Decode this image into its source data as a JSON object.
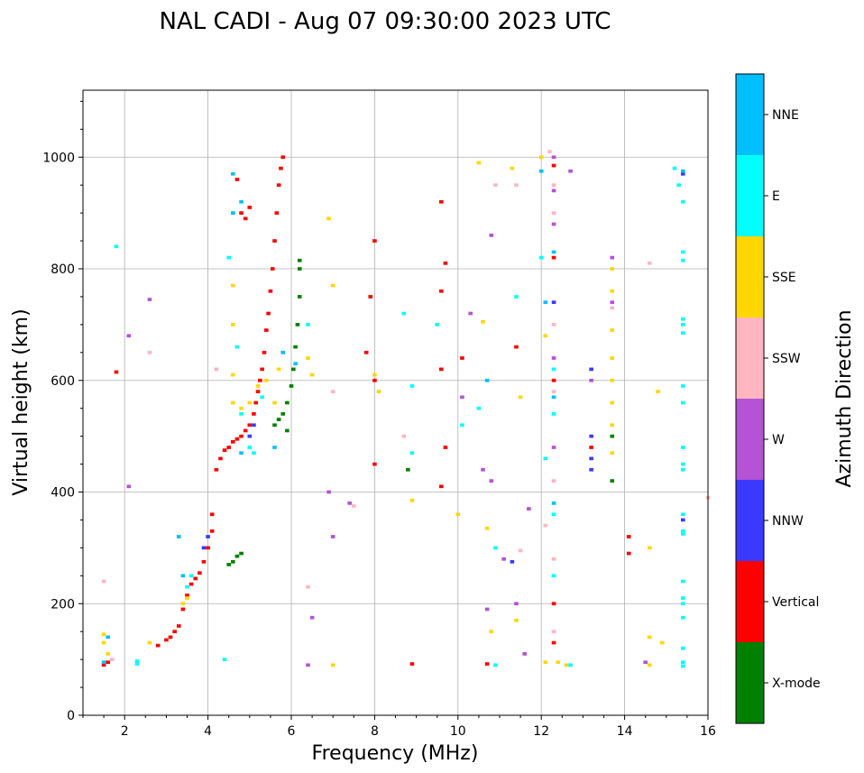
{
  "chart_data": {
    "type": "scatter",
    "title": "NAL CADI - Aug 07 09:30:00 2023 UTC",
    "xlabel": "Frequency (MHz)",
    "ylabel": "Virtual height (km)",
    "xlim": [
      1,
      16
    ],
    "ylim": [
      0,
      1120
    ],
    "xticks": [
      2,
      4,
      6,
      8,
      10,
      12,
      14,
      16
    ],
    "yticks": [
      0,
      200,
      400,
      600,
      800,
      1000
    ],
    "grid": true,
    "colorbar": {
      "label": "Azimuth Direction",
      "placement": "right",
      "categories": [
        {
          "name": "X-mode",
          "color": "#008000"
        },
        {
          "name": "Vertical",
          "color": "#ff0000"
        },
        {
          "name": "NNW",
          "color": "#3a3aff"
        },
        {
          "name": "W",
          "color": "#b453d6"
        },
        {
          "name": "SSW",
          "color": "#ffb6c1"
        },
        {
          "name": "SSE",
          "color": "#ffd700"
        },
        {
          "name": "E",
          "color": "#00ffff"
        },
        {
          "name": "NNE",
          "color": "#00bfff"
        }
      ]
    },
    "series": [
      {
        "name": "Vertical",
        "points": [
          [
            1.5,
            90
          ],
          [
            1.6,
            95
          ],
          [
            2.8,
            125
          ],
          [
            3.0,
            135
          ],
          [
            3.1,
            140
          ],
          [
            3.2,
            150
          ],
          [
            3.3,
            160
          ],
          [
            3.4,
            190
          ],
          [
            3.5,
            215
          ],
          [
            3.6,
            235
          ],
          [
            3.7,
            245
          ],
          [
            3.8,
            255
          ],
          [
            3.9,
            275
          ],
          [
            4.0,
            300
          ],
          [
            4.1,
            330
          ],
          [
            4.1,
            360
          ],
          [
            4.2,
            440
          ],
          [
            4.3,
            460
          ],
          [
            4.4,
            475
          ],
          [
            4.5,
            480
          ],
          [
            4.6,
            490
          ],
          [
            4.7,
            495
          ],
          [
            4.8,
            500
          ],
          [
            4.9,
            510
          ],
          [
            5.0,
            520
          ],
          [
            5.1,
            540
          ],
          [
            5.15,
            560
          ],
          [
            5.2,
            580
          ],
          [
            5.25,
            600
          ],
          [
            5.3,
            620
          ],
          [
            5.35,
            650
          ],
          [
            5.4,
            690
          ],
          [
            5.45,
            720
          ],
          [
            5.5,
            760
          ],
          [
            5.55,
            800
          ],
          [
            5.6,
            850
          ],
          [
            5.65,
            900
          ],
          [
            5.7,
            950
          ],
          [
            5.75,
            980
          ],
          [
            5.8,
            1000
          ],
          [
            4.7,
            960
          ],
          [
            4.8,
            900
          ],
          [
            4.9,
            890
          ],
          [
            5.0,
            910
          ],
          [
            1.8,
            615
          ],
          [
            9.6,
            920
          ],
          [
            9.7,
            810
          ],
          [
            9.6,
            760
          ],
          [
            8.0,
            850
          ],
          [
            7.9,
            750
          ],
          [
            7.8,
            650
          ],
          [
            8.0,
            600
          ],
          [
            9.6,
            410
          ],
          [
            9.7,
            480
          ],
          [
            9.6,
            620
          ],
          [
            10.1,
            640
          ],
          [
            12.3,
            985
          ],
          [
            12.3,
            820
          ],
          [
            12.3,
            600
          ],
          [
            12.3,
            200
          ],
          [
            12.3,
            130
          ],
          [
            13.2,
            480
          ],
          [
            14.1,
            320
          ],
          [
            14.1,
            290
          ],
          [
            11.4,
            660
          ],
          [
            8.0,
            450
          ],
          [
            8.9,
            92
          ],
          [
            10.7,
            92
          ]
        ]
      },
      {
        "name": "X-mode",
        "points": [
          [
            4.5,
            270
          ],
          [
            4.6,
            275
          ],
          [
            4.7,
            285
          ],
          [
            4.8,
            290
          ],
          [
            5.6,
            520
          ],
          [
            5.7,
            530
          ],
          [
            5.8,
            540
          ],
          [
            5.9,
            560
          ],
          [
            6.0,
            590
          ],
          [
            6.05,
            620
          ],
          [
            6.1,
            660
          ],
          [
            6.15,
            700
          ],
          [
            6.2,
            750
          ],
          [
            6.2,
            800
          ],
          [
            6.2,
            815
          ],
          [
            5.9,
            510
          ],
          [
            8.8,
            440
          ],
          [
            13.7,
            420
          ],
          [
            13.7,
            500
          ]
        ]
      },
      {
        "name": "NNW",
        "points": [
          [
            3.9,
            300
          ],
          [
            4.0,
            320
          ],
          [
            5.0,
            500
          ],
          [
            5.1,
            520
          ],
          [
            13.2,
            440
          ],
          [
            13.2,
            460
          ],
          [
            13.2,
            500
          ],
          [
            13.2,
            620
          ],
          [
            15.4,
            350
          ],
          [
            15.4,
            970
          ],
          [
            11.3,
            275
          ],
          [
            12.3,
            740
          ]
        ]
      },
      {
        "name": "W",
        "points": [
          [
            2.1,
            410
          ],
          [
            2.6,
            745
          ],
          [
            2.1,
            680
          ],
          [
            6.9,
            400
          ],
          [
            7.0,
            320
          ],
          [
            7.4,
            380
          ],
          [
            10.1,
            570
          ],
          [
            10.6,
            440
          ],
          [
            10.8,
            420
          ],
          [
            10.8,
            860
          ],
          [
            11.7,
            370
          ],
          [
            12.3,
            1000
          ],
          [
            12.3,
            940
          ],
          [
            12.3,
            880
          ],
          [
            12.3,
            640
          ],
          [
            12.3,
            480
          ],
          [
            12.7,
            975
          ],
          [
            13.2,
            600
          ],
          [
            13.7,
            740
          ],
          [
            13.7,
            820
          ],
          [
            14.5,
            95
          ],
          [
            11.1,
            280
          ],
          [
            11.4,
            200
          ],
          [
            11.6,
            110
          ],
          [
            6.4,
            90
          ],
          [
            6.5,
            175
          ],
          [
            10.7,
            190
          ],
          [
            10.3,
            720
          ]
        ]
      },
      {
        "name": "SSW",
        "points": [
          [
            1.5,
            240
          ],
          [
            1.7,
            100
          ],
          [
            2.6,
            650
          ],
          [
            4.2,
            620
          ],
          [
            6.4,
            230
          ],
          [
            7.0,
            580
          ],
          [
            7.5,
            375
          ],
          [
            8.7,
            500
          ],
          [
            10.9,
            950
          ],
          [
            11.4,
            950
          ],
          [
            12.2,
            1010
          ],
          [
            12.3,
            950
          ],
          [
            12.3,
            900
          ],
          [
            12.3,
            700
          ],
          [
            12.3,
            580
          ],
          [
            12.3,
            420
          ],
          [
            12.3,
            280
          ],
          [
            12.3,
            150
          ],
          [
            12.1,
            340
          ],
          [
            14.6,
            810
          ],
          [
            16.0,
            390
          ],
          [
            13.7,
            730
          ],
          [
            11.5,
            295
          ]
        ]
      },
      {
        "name": "SSE",
        "points": [
          [
            1.5,
            130
          ],
          [
            1.5,
            145
          ],
          [
            1.6,
            110
          ],
          [
            2.6,
            130
          ],
          [
            3.4,
            200
          ],
          [
            3.5,
            210
          ],
          [
            4.6,
            560
          ],
          [
            4.6,
            610
          ],
          [
            4.6,
            700
          ],
          [
            4.6,
            770
          ],
          [
            4.8,
            550
          ],
          [
            5.0,
            560
          ],
          [
            5.2,
            590
          ],
          [
            5.4,
            600
          ],
          [
            5.6,
            560
          ],
          [
            5.7,
            620
          ],
          [
            6.4,
            640
          ],
          [
            6.5,
            610
          ],
          [
            6.9,
            890
          ],
          [
            7.0,
            770
          ],
          [
            8.0,
            610
          ],
          [
            8.1,
            580
          ],
          [
            8.9,
            385
          ],
          [
            10.0,
            360
          ],
          [
            10.5,
            990
          ],
          [
            10.6,
            705
          ],
          [
            10.7,
            335
          ],
          [
            10.8,
            150
          ],
          [
            11.3,
            980
          ],
          [
            11.4,
            170
          ],
          [
            11.5,
            570
          ],
          [
            12.0,
            1000
          ],
          [
            12.1,
            680
          ],
          [
            12.1,
            95
          ],
          [
            12.4,
            95
          ],
          [
            12.6,
            90
          ],
          [
            13.7,
            800
          ],
          [
            13.7,
            760
          ],
          [
            13.7,
            690
          ],
          [
            13.7,
            640
          ],
          [
            13.7,
            600
          ],
          [
            13.7,
            560
          ],
          [
            13.7,
            520
          ],
          [
            13.7,
            470
          ],
          [
            14.6,
            300
          ],
          [
            14.6,
            140
          ],
          [
            14.6,
            90
          ],
          [
            14.9,
            130
          ],
          [
            14.8,
            580
          ],
          [
            7.0,
            90
          ]
        ]
      },
      {
        "name": "E",
        "points": [
          [
            1.8,
            840
          ],
          [
            2.3,
            92
          ],
          [
            2.3,
            97
          ],
          [
            3.5,
            230
          ],
          [
            3.6,
            250
          ],
          [
            4.4,
            100
          ],
          [
            4.5,
            820
          ],
          [
            4.6,
            900
          ],
          [
            4.7,
            660
          ],
          [
            4.8,
            540
          ],
          [
            5.0,
            480
          ],
          [
            5.1,
            470
          ],
          [
            5.3,
            570
          ],
          [
            6.4,
            700
          ],
          [
            8.7,
            720
          ],
          [
            8.9,
            590
          ],
          [
            8.9,
            470
          ],
          [
            9.5,
            700
          ],
          [
            10.1,
            520
          ],
          [
            10.5,
            550
          ],
          [
            10.9,
            300
          ],
          [
            10.9,
            90
          ],
          [
            11.4,
            750
          ],
          [
            12.0,
            820
          ],
          [
            12.1,
            460
          ],
          [
            12.3,
            620
          ],
          [
            12.3,
            540
          ],
          [
            12.3,
            360
          ],
          [
            12.3,
            250
          ],
          [
            12.7,
            90
          ],
          [
            15.2,
            980
          ],
          [
            15.3,
            950
          ],
          [
            15.4,
            920
          ],
          [
            15.4,
            830
          ],
          [
            15.4,
            815
          ],
          [
            15.4,
            710
          ],
          [
            15.4,
            700
          ],
          [
            15.4,
            685
          ],
          [
            15.4,
            590
          ],
          [
            15.4,
            560
          ],
          [
            15.4,
            480
          ],
          [
            15.4,
            450
          ],
          [
            15.4,
            440
          ],
          [
            15.4,
            360
          ],
          [
            15.4,
            330
          ],
          [
            15.4,
            325
          ],
          [
            15.4,
            240
          ],
          [
            15.4,
            210
          ],
          [
            15.4,
            200
          ],
          [
            15.4,
            175
          ],
          [
            15.4,
            120
          ],
          [
            15.4,
            95
          ],
          [
            15.4,
            88
          ]
        ]
      },
      {
        "name": "NNE",
        "points": [
          [
            1.5,
            95
          ],
          [
            1.6,
            140
          ],
          [
            3.3,
            320
          ],
          [
            3.4,
            250
          ],
          [
            4.6,
            970
          ],
          [
            4.6,
            900
          ],
          [
            4.8,
            920
          ],
          [
            4.8,
            470
          ],
          [
            5.6,
            480
          ],
          [
            5.8,
            650
          ],
          [
            6.1,
            630
          ],
          [
            10.7,
            600
          ],
          [
            12.0,
            975
          ],
          [
            12.1,
            740
          ],
          [
            12.3,
            830
          ],
          [
            12.3,
            570
          ],
          [
            12.3,
            380
          ],
          [
            15.4,
            975
          ]
        ]
      }
    ]
  }
}
